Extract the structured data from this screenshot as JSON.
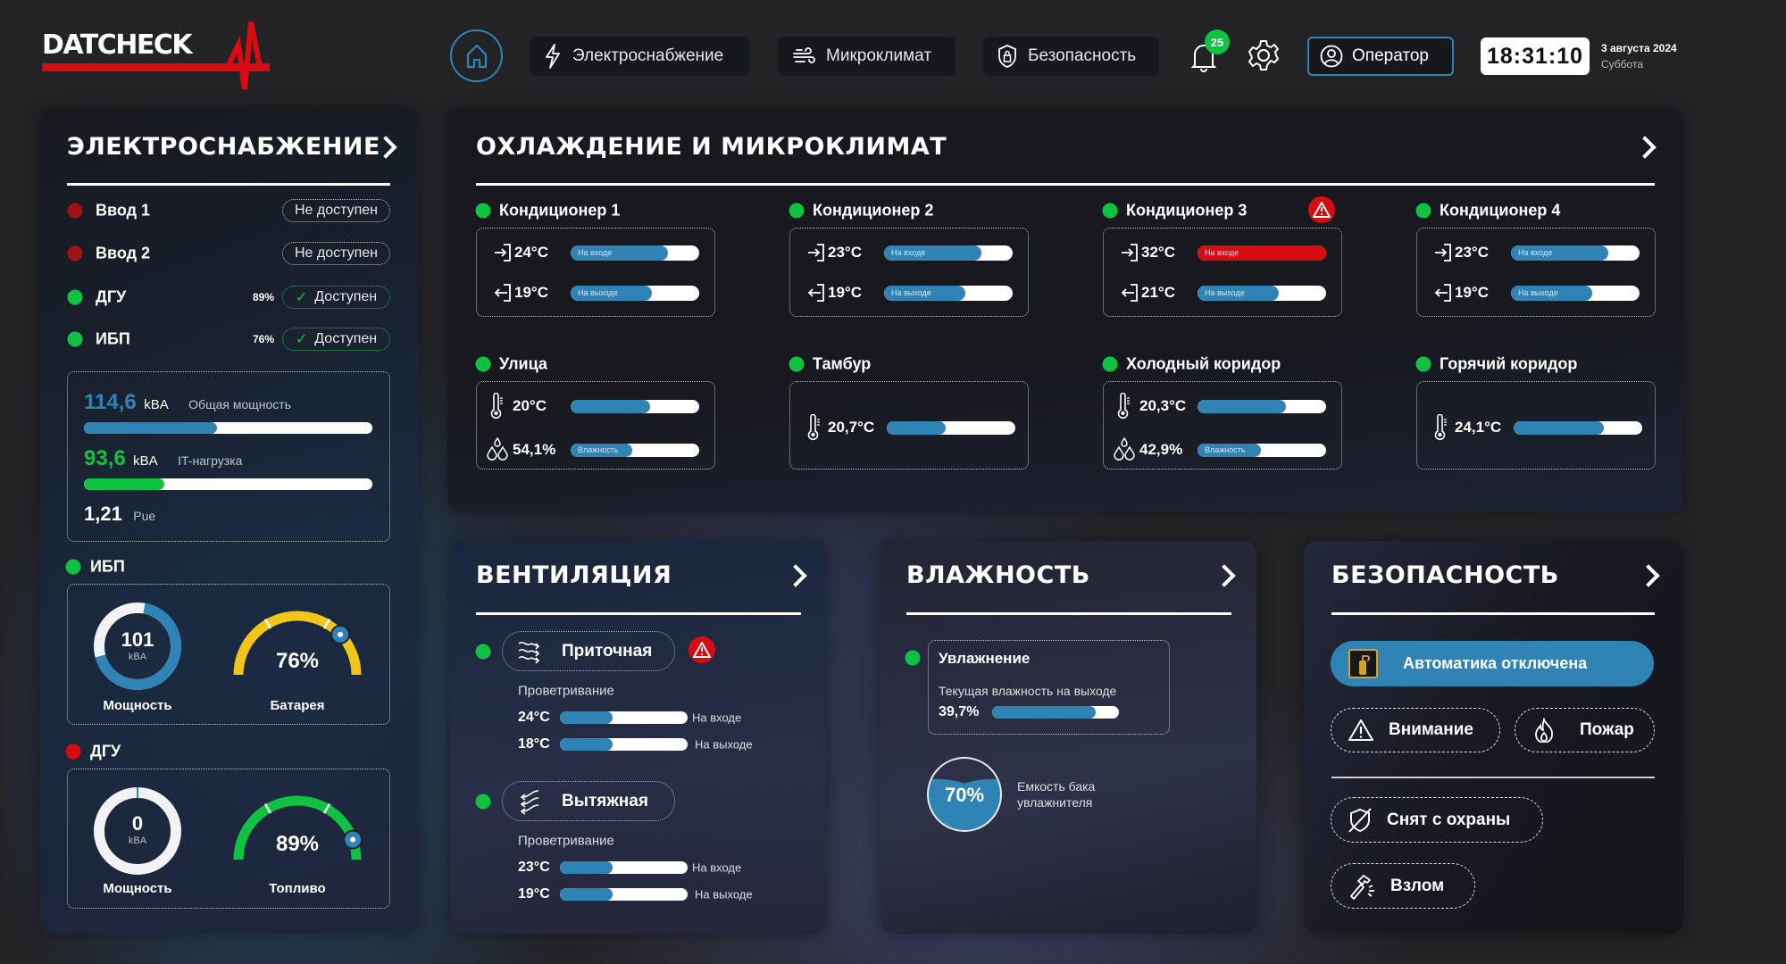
{
  "header": {
    "logo_text": "DATCHECK",
    "nav": [
      {
        "label": "Электроснабжение",
        "icon": "lightning-icon"
      },
      {
        "label": "Микроклимат",
        "icon": "wind-icon"
      },
      {
        "label": "Безопасность",
        "icon": "shield-lock-icon"
      }
    ],
    "notifications_count": "25",
    "user_label": "Оператор",
    "time": "18:31:10",
    "date": "3 августа 2024",
    "weekday": "Суббота"
  },
  "colors": {
    "accent": "#2f84b5",
    "ok": "#0fc241",
    "alarm": "#d80c10",
    "battery": "#f1c617"
  },
  "power": {
    "title": "ЭЛЕКТРОСНАБЖЕНИЕ",
    "inputs": [
      {
        "name": "Ввод 1",
        "status": "Не доступен",
        "state": "offline",
        "percent": ""
      },
      {
        "name": "Ввод 2",
        "status": "Не доступен",
        "state": "offline",
        "percent": ""
      },
      {
        "name": "ДГУ",
        "status": "Доступен",
        "state": "ok",
        "percent": "89%"
      },
      {
        "name": "ИБП",
        "status": "Доступен",
        "state": "ok",
        "percent": "76%"
      }
    ],
    "total_power": {
      "value": "114,6",
      "unit": "kBA",
      "label": "Общая мощность",
      "fill_percent": 46
    },
    "it_load": {
      "value": "93,6",
      "unit": "kBA",
      "label": "IT-нагрузка",
      "fill_percent": 28
    },
    "pue": {
      "value": "1,21",
      "label": "Pue"
    },
    "ups": {
      "title": "ИБП",
      "power_value": "101",
      "power_unit": "kBA",
      "power_fill": 0.68,
      "power_label": "Мощность",
      "gauge_value": "76%",
      "gauge_percent": 76,
      "gauge_label": "Батарея",
      "gauge_color": "#f1c617"
    },
    "dgu": {
      "title": "ДГУ",
      "power_value": "0",
      "power_unit": "kBA",
      "power_fill": 0,
      "power_label": "Мощность",
      "gauge_value": "89%",
      "gauge_percent": 89,
      "gauge_label": "Топливо",
      "gauge_color": "#0fc241"
    }
  },
  "cooling": {
    "title": "ОХЛАЖДЕНИЕ И МИКРОКЛИМАТ",
    "conditioners": [
      {
        "name": "Кондиционер 1",
        "in_temp": "24°C",
        "in_label": "На входе",
        "in_fill": 76,
        "out_temp": "19°C",
        "out_label": "На выходе",
        "out_fill": 63
      },
      {
        "name": "Кондиционер 2",
        "in_temp": "23°C",
        "in_label": "На входе",
        "in_fill": 76,
        "out_temp": "19°C",
        "out_label": "На выходе",
        "out_fill": 63
      },
      {
        "name": "Кондиционер 3",
        "in_temp": "32°C",
        "in_label": "На входе",
        "in_fill": 100,
        "out_temp": "21°C",
        "out_label": "На выходе",
        "out_fill": 63,
        "alarm": true
      },
      {
        "name": "Кондиционер 4",
        "in_temp": "23°C",
        "in_label": "На входе",
        "in_fill": 76,
        "out_temp": "19°C",
        "out_label": "На выходе",
        "out_fill": 63
      }
    ],
    "zones": [
      {
        "name": "Улица",
        "temp": "20°C",
        "temp_fill": 62,
        "humidity": "54,1%",
        "humidity_label": "Влажность",
        "humidity_fill": 48
      },
      {
        "name": "Тамбур",
        "temp": "20,7°C",
        "temp_fill": 46
      },
      {
        "name": "Холодный коридор",
        "temp": "20,3°C",
        "temp_fill": 69,
        "humidity": "42,9%",
        "humidity_label": "Влажность",
        "humidity_fill": 49
      },
      {
        "name": "Горячий коридор",
        "temp": "24,1°C",
        "temp_fill": 70
      }
    ]
  },
  "ventilation": {
    "title": "ВЕНТИЛЯЦИЯ",
    "units": [
      {
        "name": "Приточная",
        "mode": "Проветривание",
        "in_temp": "24°C",
        "in_label": "На входе",
        "in_fill": 41,
        "out_temp": "18°C",
        "out_label": "На выходе",
        "out_fill": 41,
        "alarm": true
      },
      {
        "name": "Вытяжная",
        "mode": "Проветривание",
        "in_temp": "23°C",
        "in_label": "На входе",
        "in_fill": 41,
        "out_temp": "19°C",
        "out_label": "На выходе",
        "out_fill": 41
      }
    ]
  },
  "humidity": {
    "title": "ВЛАЖНОСТЬ",
    "unit_name": "Увлажнение",
    "current_label": "Текущая влажность на выходе",
    "current_value": "39,7%",
    "current_fill": 82,
    "tank_value": "70%",
    "tank_percent": 70,
    "tank_label_1": "Емкость бака",
    "tank_label_2": "увлажнителя"
  },
  "security": {
    "title": "БЕЗОПАСНОСТЬ",
    "automation": "Автоматика отключена",
    "attention": "Внимание",
    "fire": "Пожар",
    "disarmed": "Снят с охраны",
    "breakin": "Взлом"
  }
}
